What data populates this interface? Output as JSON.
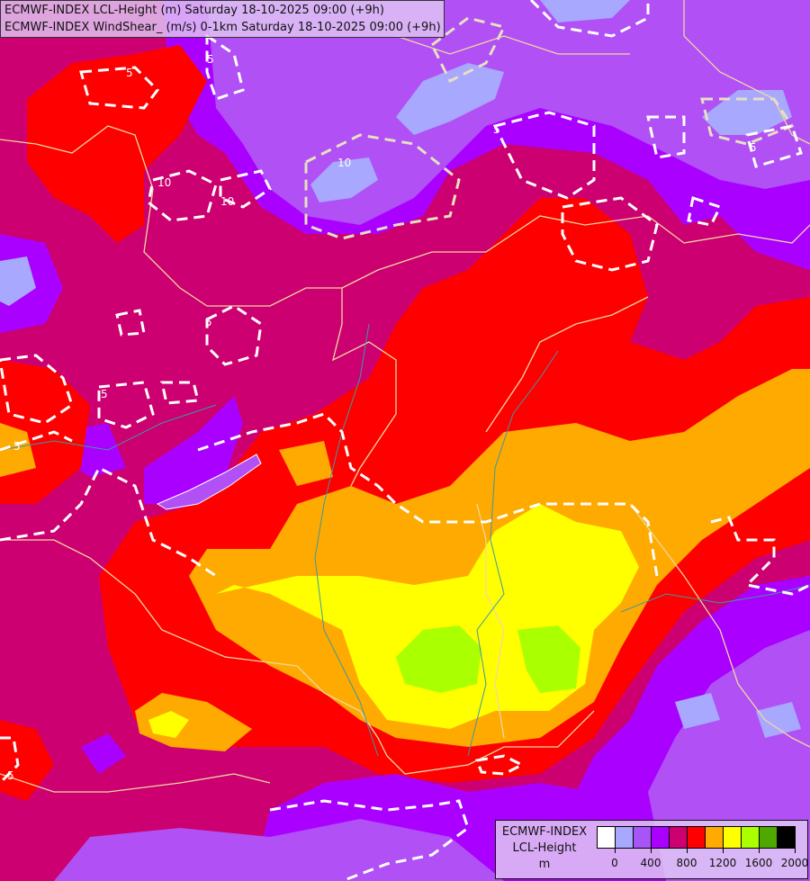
{
  "header": {
    "line1": "ECMWF-INDEX LCL-Height (m) Saturday 18-10-2025 09:00 (+9h)",
    "line2": "ECMWF-INDEX WindShear_ (m/s) 0-1km Saturday 18-10-2025 09:00 (+9h)"
  },
  "legend": {
    "title_line1": "ECMWF-INDEX",
    "title_line2": "LCL-Height",
    "unit": "m",
    "colors": [
      "#ffffff",
      "#a8a8ff",
      "#a855f7",
      "#aa00ff",
      "#cc0070",
      "#ff0000",
      "#ffaa00",
      "#ffff00",
      "#aaff00",
      "#4fa800",
      "#000000"
    ],
    "tick_labels": [
      "0",
      "400",
      "800",
      "1200",
      "1600",
      "2000"
    ]
  },
  "contours": {
    "labels": [
      "5",
      "10",
      "10",
      "10",
      "5",
      "5",
      "5",
      "5",
      "5",
      "5",
      "5"
    ]
  }
}
